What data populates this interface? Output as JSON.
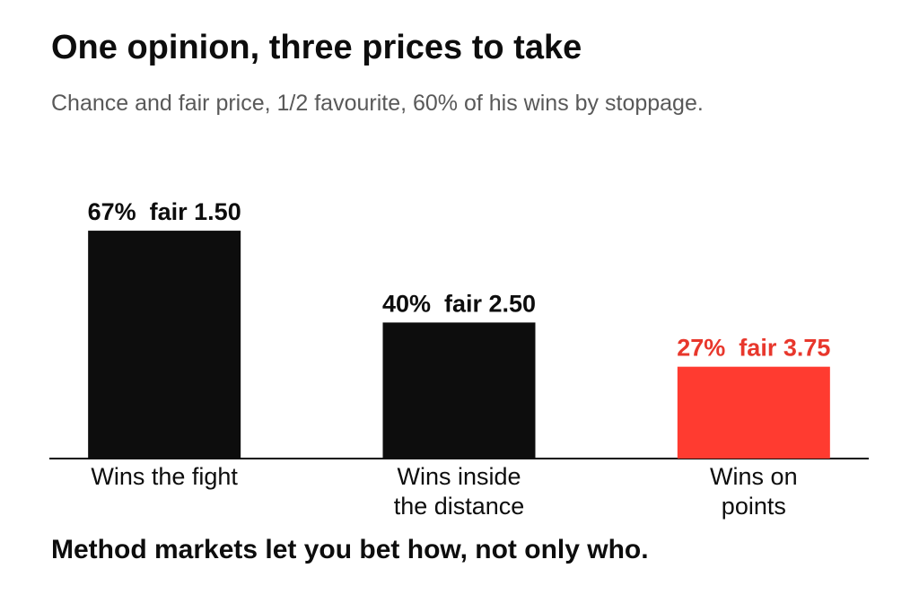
{
  "chart_data": {
    "type": "bar",
    "title": "One opinion, three prices to take",
    "subtitle": "Chance and fair price, 1/2 favourite, 60% of his wins by stoppage.",
    "categories": [
      "Wins the fight",
      "Wins inside\nthe distance",
      "Wins on\npoints"
    ],
    "values": [
      67,
      40,
      27
    ],
    "value_labels": [
      "67%  fair 1.50",
      "40%  fair 2.50",
      "27%  fair 3.75"
    ],
    "colors": [
      "#0d0d0d",
      "#0d0d0d",
      "#ff3b30"
    ],
    "label_colors": [
      "#0d0d0d",
      "#0d0d0d",
      "#e8372c"
    ],
    "ylim": [
      0,
      100
    ],
    "annotation": "Method markets let you bet how, not only who."
  }
}
